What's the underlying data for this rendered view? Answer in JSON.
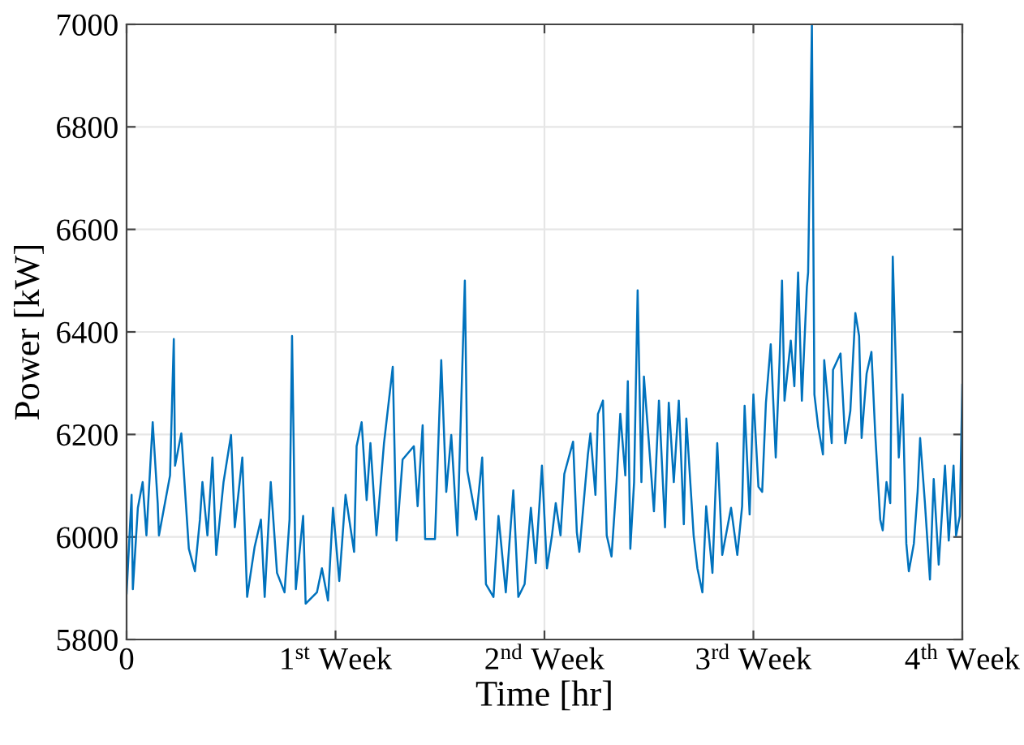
{
  "chart_data": {
    "type": "line",
    "xlabel": "Time [hr]",
    "ylabel": "Power [kW]",
    "xlim": [
      0,
      4
    ],
    "ylim": [
      5800,
      7000
    ],
    "xticks": [
      0,
      {
        "value": 1,
        "label": "1$^{st}$ Week"
      },
      {
        "value": 2,
        "label": "2$^{nd}$ Week"
      },
      {
        "value": 3,
        "label": "3$^{rd}$ Week"
      },
      {
        "value": 4,
        "label": "4$^{th}$ Week"
      }
    ],
    "yticks": [
      5800,
      6000,
      6200,
      6400,
      6600,
      6800,
      7000
    ],
    "grid": true,
    "marker": "none",
    "line_style": "solid",
    "series": [
      {
        "color": "#0072bd",
        "x": [
          0,
          0.024,
          0.03,
          0.054,
          0.077,
          0.095,
          0.125,
          0.149,
          0.155,
          0.208,
          0.226,
          0.232,
          0.262,
          0.298,
          0.327,
          0.351,
          0.363,
          0.387,
          0.411,
          0.429,
          0.464,
          0.5,
          0.518,
          0.554,
          0.577,
          0.613,
          0.643,
          0.661,
          0.69,
          0.72,
          0.756,
          0.78,
          0.792,
          0.81,
          0.845,
          0.857,
          0.911,
          0.935,
          0.964,
          0.988,
          1.018,
          1.048,
          1.089,
          1.101,
          1.125,
          1.149,
          1.167,
          1.196,
          1.232,
          1.274,
          1.292,
          1.321,
          1.375,
          1.393,
          1.417,
          1.429,
          1.476,
          1.506,
          1.53,
          1.554,
          1.583,
          1.619,
          1.631,
          1.673,
          1.702,
          1.72,
          1.756,
          1.78,
          1.815,
          1.851,
          1.875,
          1.905,
          1.935,
          1.958,
          1.988,
          2.012,
          2.036,
          2.054,
          2.077,
          2.095,
          2.137,
          2.155,
          2.167,
          2.208,
          2.22,
          2.244,
          2.256,
          2.28,
          2.298,
          2.321,
          2.345,
          2.363,
          2.387,
          2.399,
          2.411,
          2.429,
          2.446,
          2.464,
          2.476,
          2.5,
          2.524,
          2.548,
          2.577,
          2.595,
          2.619,
          2.643,
          2.667,
          2.679,
          2.714,
          2.732,
          2.756,
          2.774,
          2.804,
          2.827,
          2.851,
          2.893,
          2.923,
          2.946,
          2.958,
          2.982,
          3,
          3.024,
          3.042,
          3.06,
          3.083,
          3.107,
          3.125,
          3.137,
          3.149,
          3.179,
          3.196,
          3.214,
          3.232,
          3.256,
          3.262,
          3.28,
          3.292,
          3.31,
          3.333,
          3.339,
          3.375,
          3.381,
          3.417,
          3.44,
          3.464,
          3.488,
          3.506,
          3.518,
          3.542,
          3.565,
          3.583,
          3.607,
          3.619,
          3.637,
          3.655,
          3.667,
          3.685,
          3.696,
          3.714,
          3.732,
          3.744,
          3.768,
          3.786,
          3.798,
          3.821,
          3.845,
          3.863,
          3.887,
          3.917,
          3.935,
          3.958,
          3.97,
          3.988,
          4
        ],
        "values": [
          5890,
          6082,
          5898,
          6057,
          6107,
          6003,
          6224,
          6066,
          6003,
          6120,
          6386,
          6139,
          6202,
          5977,
          5933,
          6034,
          6107,
          6003,
          6155,
          5965,
          6107,
          6199,
          6019,
          6155,
          5883,
          5981,
          6034,
          5883,
          6107,
          5930,
          5892,
          6034,
          6392,
          5898,
          6041,
          5870,
          5892,
          5939,
          5876,
          6057,
          5914,
          6082,
          5971,
          6177,
          6224,
          6072,
          6183,
          6003,
          6183,
          6332,
          5993,
          6151,
          6177,
          6060,
          6218,
          5996,
          5996,
          6345,
          6088,
          6199,
          6003,
          6500,
          6129,
          6034,
          6155,
          5908,
          5883,
          6041,
          5892,
          6091,
          5883,
          5908,
          6057,
          5949,
          6139,
          5939,
          6003,
          6066,
          6003,
          6123,
          6186,
          6009,
          5971,
          6161,
          6202,
          6082,
          6240,
          6266,
          6003,
          5962,
          6107,
          6240,
          6120,
          6304,
          5977,
          6107,
          6481,
          6107,
          6313,
          6183,
          6050,
          6266,
          6019,
          6262,
          6107,
          6266,
          6025,
          6231,
          6003,
          5939,
          5892,
          6060,
          5930,
          6183,
          5965,
          6057,
          5965,
          6060,
          6256,
          6044,
          6278,
          6098,
          6088,
          6262,
          6376,
          6155,
          6341,
          6500,
          6266,
          6383,
          6294,
          6516,
          6266,
          6488,
          6516,
          7000,
          6278,
          6215,
          6161,
          6345,
          6183,
          6326,
          6358,
          6183,
          6246,
          6437,
          6392,
          6193,
          6319,
          6361,
          6202,
          6034,
          6013,
          6107,
          6066,
          6547,
          6288,
          6155,
          6278,
          5987,
          5933,
          5987,
          6088,
          6193,
          6066,
          5917,
          6113,
          5946,
          6139,
          5993,
          6139,
          6003,
          6041,
          6297
        ]
      }
    ]
  }
}
